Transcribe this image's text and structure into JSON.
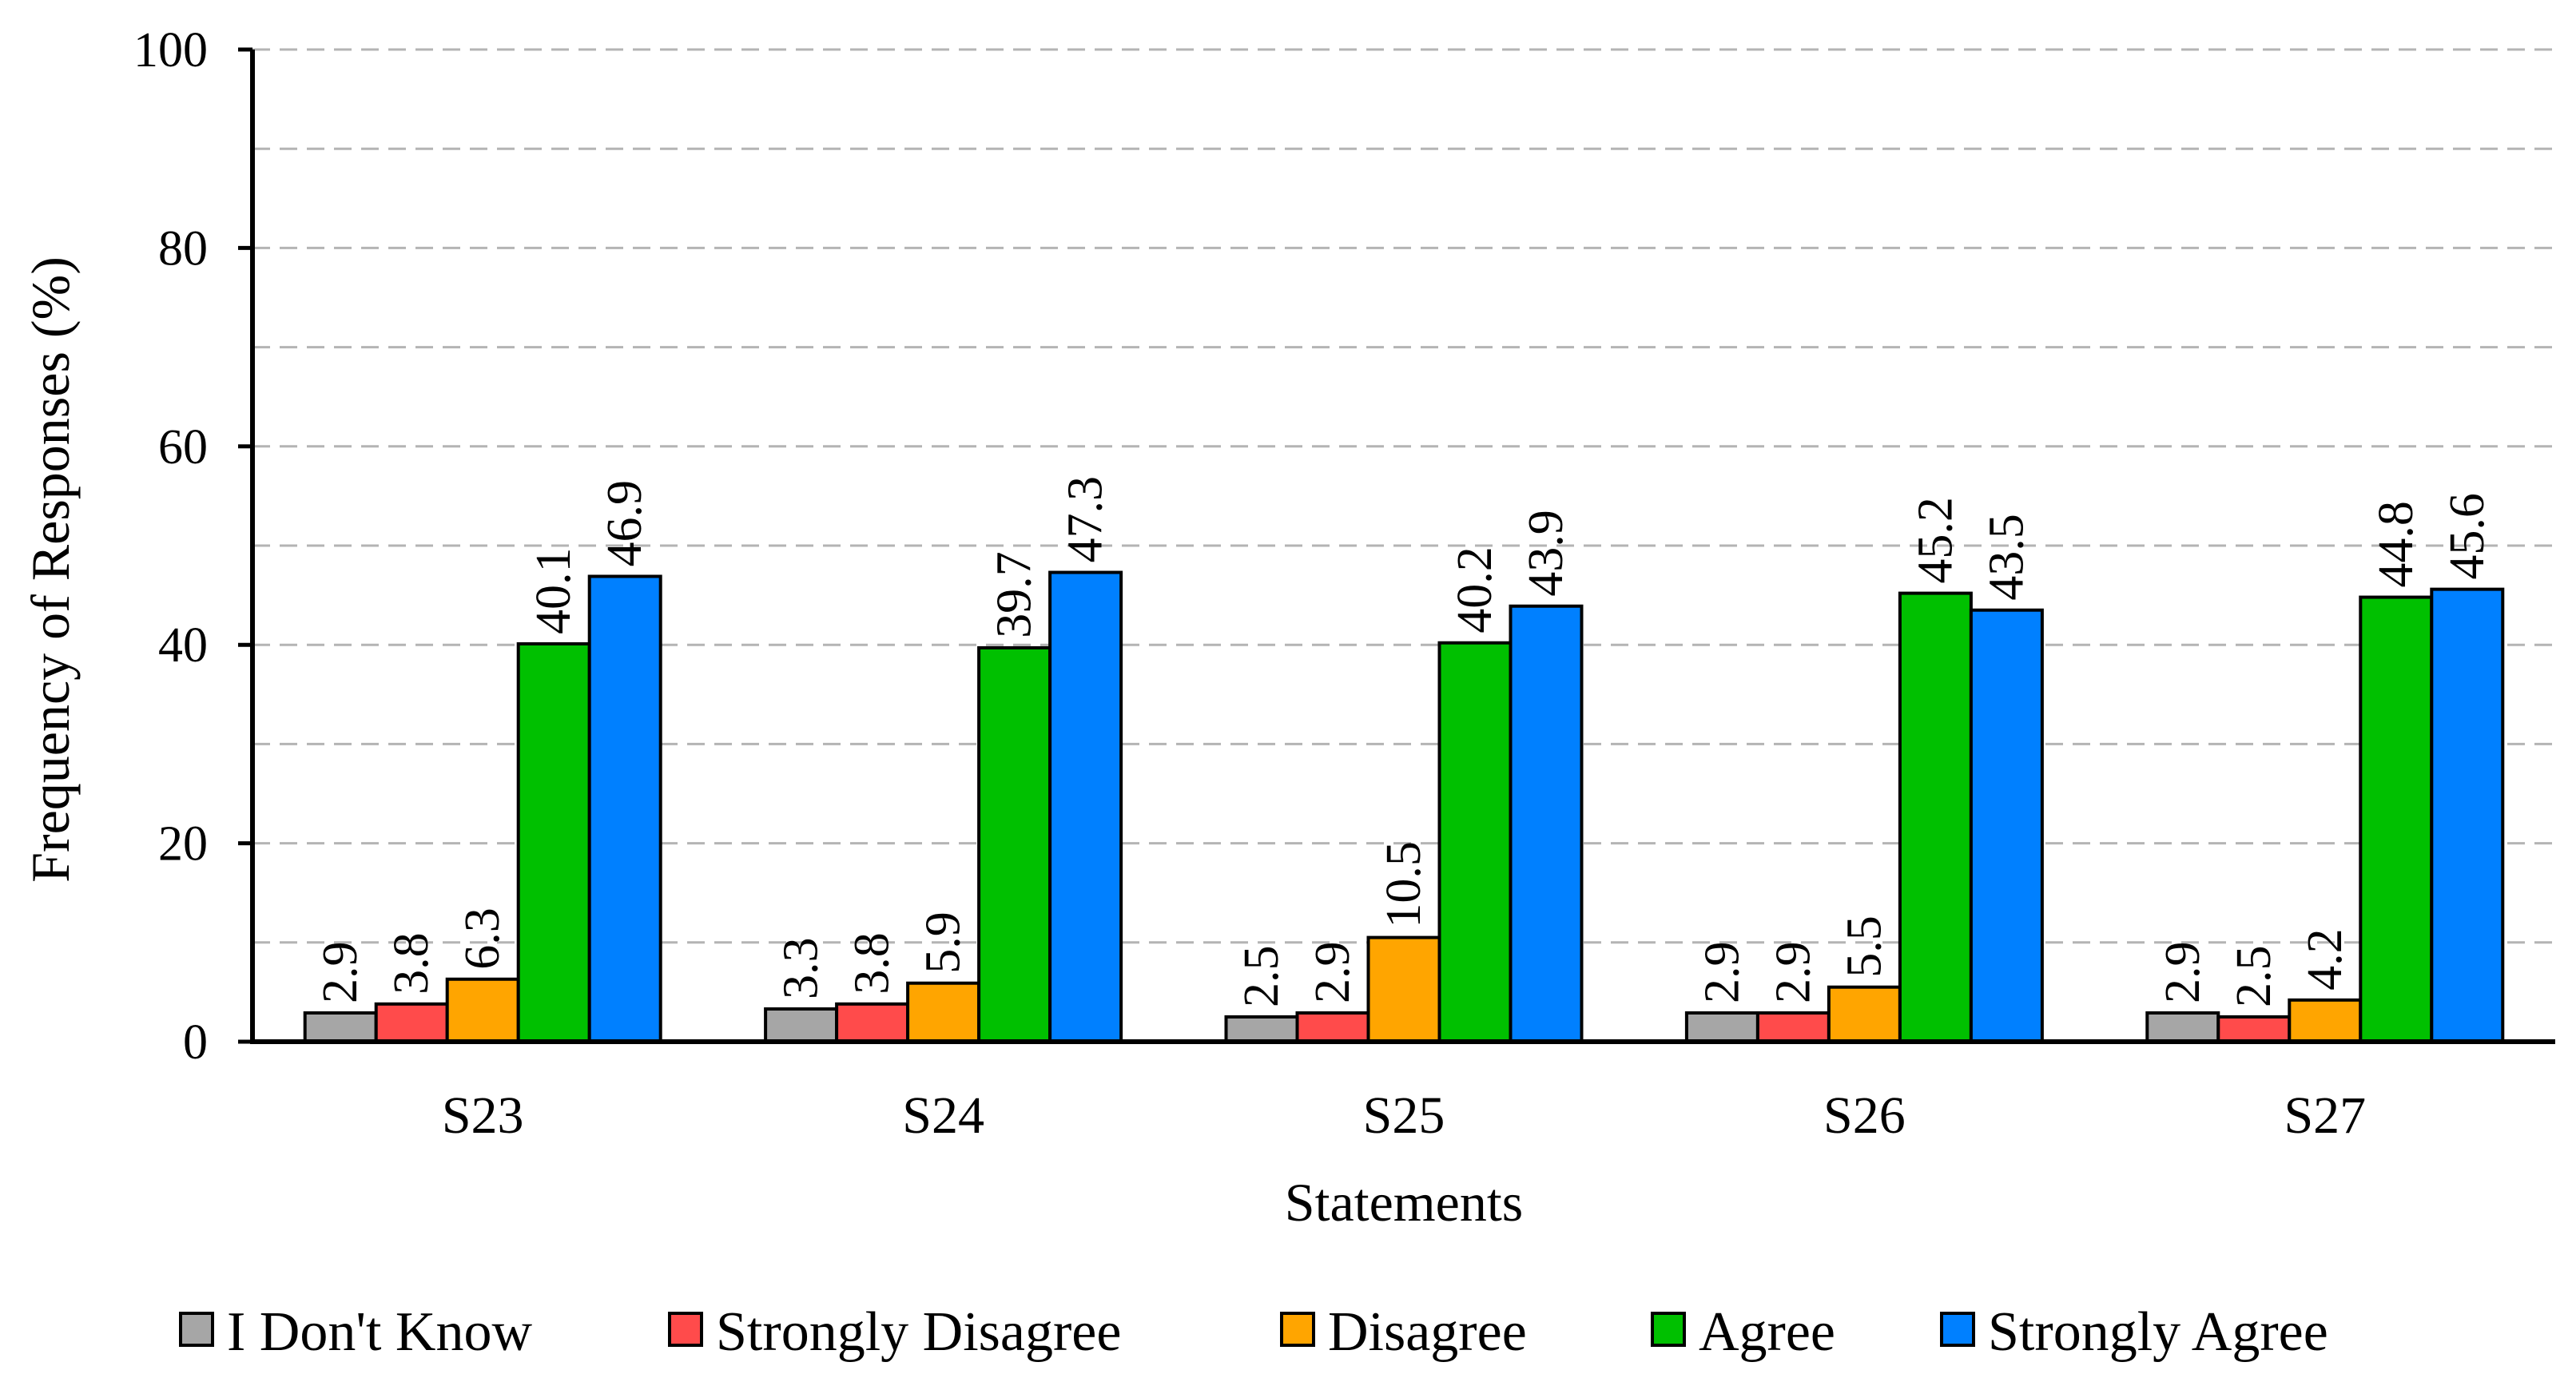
{
  "chart_data": {
    "type": "bar",
    "categories": [
      "S23",
      "S24",
      "S25",
      "S26",
      "S27"
    ],
    "series": [
      {
        "name": "I Don't Know",
        "color": "#a6a6a6",
        "values": [
          2.9,
          3.3,
          2.5,
          2.9,
          2.9
        ]
      },
      {
        "name": "Strongly Disagree",
        "color": "#ff4b4b",
        "values": [
          3.8,
          3.8,
          2.9,
          2.9,
          2.5
        ]
      },
      {
        "name": "Disagree",
        "color": "#ffa500",
        "values": [
          6.3,
          5.9,
          10.5,
          5.5,
          4.2
        ]
      },
      {
        "name": "Agree",
        "color": "#00c000",
        "values": [
          40.1,
          39.7,
          40.2,
          45.2,
          44.8
        ]
      },
      {
        "name": "Strongly Agree",
        "color": "#0080ff",
        "values": [
          46.9,
          47.3,
          43.9,
          43.5,
          45.6
        ]
      }
    ],
    "xlabel": "Statements",
    "ylabel": "Frequency of Responses (%)",
    "ylim": [
      0,
      100
    ],
    "yticks": [
      0,
      20,
      40,
      60,
      80,
      100
    ],
    "grid": true,
    "legend": "bottom"
  }
}
